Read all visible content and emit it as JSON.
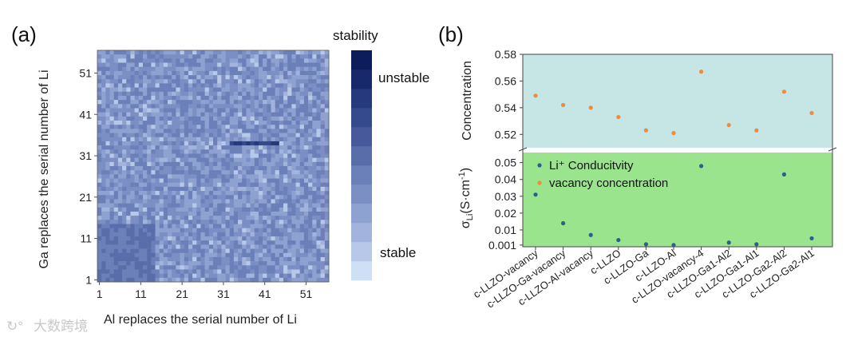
{
  "panel_a": {
    "label": "(a)",
    "xlabel": "Al replaces the serial number of Li",
    "ylabel": "Ga replaces the serial number of Li",
    "colorbar": {
      "title": "stability",
      "top_label": "unstable",
      "bottom_label": "stable"
    }
  },
  "panel_b": {
    "label": "(b)",
    "ylabel_top": "Concentration",
    "legend": {
      "conductivity": "Li⁺ Conducitvity",
      "vacancy": "vacancy concentration"
    }
  },
  "colors": {
    "heatmap_base": "#8aa3cf",
    "colorbar": [
      "#cfe0f6",
      "#b7c8e8",
      "#a2b3dd",
      "#8ea2d1",
      "#7b8fc4",
      "#6b7fb8",
      "#5a6dab",
      "#47599a",
      "#344a8c",
      "#25397c",
      "#17296b",
      "#0d1d5c"
    ],
    "top_region": "#c5e6e4",
    "bottom_region": "#9ae48e",
    "conductivity": "#2e5e8a",
    "vacancy": "#f08a3c"
  },
  "watermark": "大数跨境",
  "chart_data": [
    {
      "type": "heatmap",
      "title": "",
      "xlabel": "Al replaces the serial number of Li",
      "ylabel": "Ga replaces the serial number of Li",
      "x_ticks": [
        "1",
        "11",
        "21",
        "31",
        "41",
        "51"
      ],
      "y_ticks": [
        "1",
        "11",
        "21",
        "31",
        "41",
        "51"
      ],
      "x_range": [
        1,
        56
      ],
      "y_range": [
        1,
        56
      ],
      "colorbar_levels": 12,
      "highlights": [
        {
          "name": "lower-left stable-low block",
          "x": [
            1,
            14
          ],
          "y": [
            1,
            14
          ],
          "level": 6
        },
        {
          "name": "dark streak",
          "x": [
            33,
            44
          ],
          "y": [
            34,
            34
          ],
          "level": 9
        }
      ]
    },
    {
      "type": "scatter",
      "categories": [
        "c-LLZO-vacancy",
        "c-LLZO-Ga-vacancy",
        "c-LLZO-Al-vacancy",
        "c-LLZO",
        "c-LLZO-Ga",
        "c-LLZO-Al",
        "c-LLZO-vacancy-4",
        "c-LLZO-Ga1-Al2",
        "c-LLZO-Ga1-Al1",
        "c-LLZO-Ga2-Al2",
        "c-LLZO-Ga2-Al1"
      ],
      "series": [
        {
          "name": "Li⁺ Conducitvity",
          "values": [
            0.031,
            0.014,
            0.007,
            0.004,
            0.0015,
            0.001,
            0.048,
            0.0025,
            0.0015,
            0.043,
            0.005
          ]
        },
        {
          "name": "vacancy concentration",
          "values": [
            0.549,
            0.542,
            0.54,
            0.533,
            0.523,
            0.521,
            0.567,
            0.527,
            0.523,
            0.552,
            0.536
          ]
        }
      ],
      "top_axis": {
        "label": "Concentration",
        "ticks": [
          "0.52",
          "0.54",
          "0.56",
          "0.58"
        ],
        "ylim": [
          0.51,
          0.58
        ]
      },
      "bottom_axis": {
        "label": "σLi(S·cm⁻¹)",
        "ticks": [
          "0.001",
          "0.01",
          "0.02",
          "0.03",
          "0.04",
          "0.05"
        ],
        "ylim": [
          0,
          0.056
        ]
      },
      "legend_placement": "top-left"
    }
  ]
}
